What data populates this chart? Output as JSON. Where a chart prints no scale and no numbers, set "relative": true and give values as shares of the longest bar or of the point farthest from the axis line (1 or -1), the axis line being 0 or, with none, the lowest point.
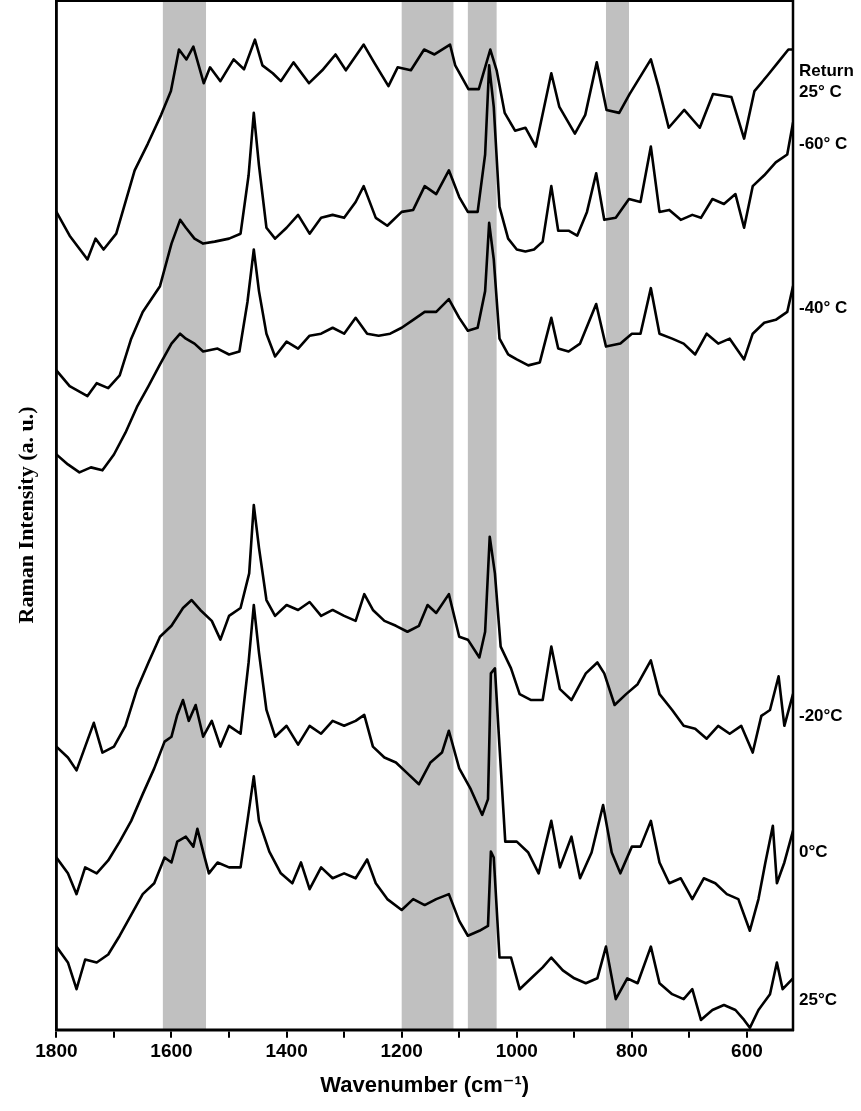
{
  "chart_data": {
    "type": "line",
    "relative": true,
    "xlabel": "Wavenumber (cm⁻¹)",
    "ylabel": "Raman Intensity (a. u.)",
    "xlim": [
      1800,
      520
    ],
    "xticks": [
      1800,
      {
        "value": 1700,
        "label": null
      },
      1600,
      {
        "value": 1500,
        "label": null
      },
      1400,
      {
        "value": 1300,
        "label": null
      },
      1200,
      {
        "value": 1100,
        "label": null
      },
      1000,
      {
        "value": 900,
        "label": null
      },
      800,
      {
        "value": 700,
        "label": null
      },
      600
    ],
    "legend": false,
    "marker": "none",
    "line_style": "solid",
    "bands": [
      {
        "axis": "x",
        "from": 1615,
        "to": 1540,
        "color": "#c0c0c0"
      },
      {
        "axis": "x",
        "from": 1200,
        "to": 1110,
        "color": "#c0c0c0"
      },
      {
        "axis": "x",
        "from": 1085,
        "to": 1035,
        "color": "#c0c0c0"
      },
      {
        "axis": "x",
        "from": 845,
        "to": 805,
        "color": "#c0c0c0"
      }
    ],
    "series": [
      {
        "name": "Return 25° C",
        "color": "#000000",
        "x": [
          1800,
          1777,
          1746,
          1732,
          1718,
          1696,
          1664,
          1641,
          1618,
          1601,
          1587,
          1574,
          1562,
          1544,
          1533,
          1515,
          1492,
          1474,
          1455,
          1442,
          1424,
          1410,
          1388,
          1361,
          1338,
          1315,
          1297,
          1266,
          1248,
          1223,
          1207,
          1184,
          1161,
          1143,
          1116,
          1107,
          1084,
          1066,
          1054,
          1046,
          1035,
          1021,
          1003,
          985,
          967,
          940,
          926,
          899,
          881,
          861,
          844,
          822,
          804,
          767,
          754,
          736,
          709,
          682,
          659,
          627,
          605,
          587,
          564,
          546,
          528,
          520
        ],
        "values": [
          0.826,
          0.802,
          0.778,
          0.799,
          0.788,
          0.804,
          0.868,
          0.895,
          0.924,
          0.948,
          0.99,
          0.98,
          0.993,
          0.956,
          0.972,
          0.958,
          0.98,
          0.97,
          1.0,
          0.974,
          0.966,
          0.958,
          0.977,
          0.956,
          0.969,
          0.985,
          0.969,
          0.995,
          0.977,
          0.953,
          0.972,
          0.969,
          0.99,
          0.985,
          0.995,
          0.974,
          0.95,
          0.95,
          0.974,
          0.99,
          0.969,
          0.926,
          0.908,
          0.911,
          0.892,
          0.966,
          0.932,
          0.905,
          0.924,
          0.977,
          0.929,
          0.926,
          0.945,
          0.98,
          0.953,
          0.911,
          0.929,
          0.911,
          0.945,
          0.942,
          0.9,
          0.948,
          0.964,
          0.977,
          0.99,
          0.99
        ]
      },
      {
        "name": "-60° C",
        "color": "#000000",
        "x": [
          1800,
          1777,
          1746,
          1730,
          1710,
          1690,
          1670,
          1650,
          1620,
          1600,
          1585,
          1575,
          1560,
          1545,
          1525,
          1500,
          1480,
          1466,
          1457,
          1448,
          1435,
          1420,
          1400,
          1380,
          1360,
          1340,
          1320,
          1300,
          1280,
          1266,
          1245,
          1225,
          1200,
          1180,
          1160,
          1140,
          1118,
          1100,
          1085,
          1068,
          1055,
          1048,
          1040,
          1030,
          1015,
          1000,
          985,
          970,
          955,
          940,
          928,
          910,
          895,
          878,
          862,
          848,
          828,
          805,
          785,
          767,
          752,
          735,
          715,
          695,
          680,
          660,
          640,
          620,
          605,
          590,
          570,
          550,
          530,
          520
        ],
        "values": [
          0.666,
          0.65,
          0.64,
          0.653,
          0.648,
          0.661,
          0.698,
          0.725,
          0.751,
          0.794,
          0.818,
          0.81,
          0.799,
          0.794,
          0.796,
          0.799,
          0.804,
          0.863,
          0.926,
          0.873,
          0.81,
          0.799,
          0.81,
          0.823,
          0.804,
          0.82,
          0.823,
          0.82,
          0.836,
          0.852,
          0.82,
          0.812,
          0.826,
          0.828,
          0.852,
          0.844,
          0.868,
          0.841,
          0.826,
          0.826,
          0.884,
          0.974,
          0.932,
          0.831,
          0.799,
          0.788,
          0.786,
          0.788,
          0.796,
          0.852,
          0.807,
          0.807,
          0.802,
          0.826,
          0.865,
          0.818,
          0.82,
          0.839,
          0.836,
          0.892,
          0.826,
          0.828,
          0.818,
          0.823,
          0.82,
          0.839,
          0.834,
          0.844,
          0.81,
          0.852,
          0.863,
          0.876,
          0.884,
          0.916
        ]
      },
      {
        "name": "-40° C",
        "color": "#000000",
        "x": [
          1800,
          1780,
          1760,
          1740,
          1720,
          1700,
          1680,
          1660,
          1640,
          1620,
          1600,
          1585,
          1575,
          1560,
          1545,
          1520,
          1500,
          1482,
          1468,
          1457,
          1448,
          1435,
          1420,
          1400,
          1380,
          1360,
          1340,
          1320,
          1300,
          1280,
          1260,
          1240,
          1220,
          1200,
          1180,
          1160,
          1140,
          1118,
          1100,
          1085,
          1068,
          1055,
          1048,
          1040,
          1030,
          1015,
          1000,
          980,
          960,
          940,
          928,
          910,
          890,
          862,
          845,
          820,
          800,
          785,
          767,
          752,
          730,
          710,
          690,
          670,
          650,
          630,
          605,
          590,
          570,
          550,
          530,
          520
        ],
        "values": [
          0.581,
          0.571,
          0.563,
          0.568,
          0.565,
          0.581,
          0.603,
          0.629,
          0.65,
          0.672,
          0.693,
          0.703,
          0.698,
          0.693,
          0.685,
          0.688,
          0.682,
          0.685,
          0.735,
          0.788,
          0.746,
          0.703,
          0.68,
          0.695,
          0.688,
          0.701,
          0.703,
          0.709,
          0.703,
          0.719,
          0.703,
          0.701,
          0.703,
          0.709,
          0.717,
          0.725,
          0.725,
          0.738,
          0.719,
          0.706,
          0.709,
          0.746,
          0.815,
          0.778,
          0.698,
          0.682,
          0.677,
          0.671,
          0.674,
          0.719,
          0.688,
          0.685,
          0.693,
          0.733,
          0.69,
          0.693,
          0.703,
          0.703,
          0.749,
          0.703,
          0.698,
          0.693,
          0.682,
          0.703,
          0.693,
          0.698,
          0.677,
          0.703,
          0.714,
          0.717,
          0.725,
          0.751
        ]
      },
      {
        "name": "-20°C",
        "color": "#000000",
        "x": [
          1800,
          1780,
          1765,
          1750,
          1735,
          1720,
          1700,
          1680,
          1660,
          1640,
          1620,
          1600,
          1580,
          1565,
          1550,
          1530,
          1515,
          1500,
          1480,
          1465,
          1457,
          1448,
          1435,
          1420,
          1400,
          1380,
          1360,
          1340,
          1320,
          1300,
          1280,
          1265,
          1250,
          1230,
          1210,
          1190,
          1170,
          1155,
          1140,
          1118,
          1100,
          1085,
          1065,
          1055,
          1047,
          1038,
          1028,
          1010,
          995,
          975,
          955,
          940,
          925,
          905,
          880,
          860,
          848,
          830,
          810,
          790,
          767,
          752,
          730,
          710,
          690,
          670,
          650,
          630,
          610,
          590,
          575,
          560,
          545,
          535,
          520
        ],
        "values": [
          0.286,
          0.275,
          0.262,
          0.286,
          0.31,
          0.28,
          0.286,
          0.307,
          0.344,
          0.371,
          0.397,
          0.408,
          0.426,
          0.434,
          0.424,
          0.413,
          0.394,
          0.418,
          0.426,
          0.461,
          0.53,
          0.487,
          0.434,
          0.418,
          0.429,
          0.424,
          0.432,
          0.418,
          0.424,
          0.418,
          0.413,
          0.44,
          0.424,
          0.413,
          0.408,
          0.402,
          0.408,
          0.429,
          0.421,
          0.44,
          0.397,
          0.394,
          0.376,
          0.402,
          0.498,
          0.461,
          0.387,
          0.365,
          0.339,
          0.333,
          0.333,
          0.387,
          0.344,
          0.333,
          0.36,
          0.371,
          0.36,
          0.328,
          0.339,
          0.349,
          0.373,
          0.339,
          0.323,
          0.307,
          0.304,
          0.294,
          0.307,
          0.299,
          0.307,
          0.28,
          0.317,
          0.323,
          0.357,
          0.307,
          0.339
        ]
      },
      {
        "name": "0°C",
        "color": "#000000",
        "x": [
          1800,
          1780,
          1765,
          1750,
          1730,
          1710,
          1690,
          1670,
          1650,
          1630,
          1612,
          1600,
          1590,
          1580,
          1570,
          1558,
          1545,
          1530,
          1515,
          1500,
          1480,
          1466,
          1457,
          1448,
          1435,
          1420,
          1400,
          1380,
          1360,
          1340,
          1320,
          1300,
          1280,
          1265,
          1250,
          1230,
          1210,
          1190,
          1170,
          1150,
          1130,
          1118,
          1100,
          1080,
          1060,
          1050,
          1045,
          1038,
          1030,
          1020,
          1000,
          980,
          962,
          940,
          925,
          905,
          890,
          870,
          850,
          835,
          820,
          800,
          785,
          767,
          752,
          735,
          715,
          695,
          675,
          655,
          635,
          615,
          595,
          580,
          568,
          555,
          548,
          535,
          520
        ],
        "values": [
          0.174,
          0.158,
          0.137,
          0.164,
          0.158,
          0.171,
          0.19,
          0.211,
          0.238,
          0.264,
          0.291,
          0.296,
          0.318,
          0.333,
          0.312,
          0.328,
          0.296,
          0.312,
          0.286,
          0.307,
          0.299,
          0.371,
          0.429,
          0.381,
          0.323,
          0.296,
          0.307,
          0.288,
          0.307,
          0.299,
          0.312,
          0.307,
          0.312,
          0.318,
          0.286,
          0.275,
          0.27,
          0.259,
          0.248,
          0.27,
          0.28,
          0.302,
          0.264,
          0.243,
          0.217,
          0.233,
          0.36,
          0.365,
          0.286,
          0.19,
          0.19,
          0.179,
          0.158,
          0.211,
          0.164,
          0.195,
          0.153,
          0.179,
          0.227,
          0.179,
          0.158,
          0.185,
          0.185,
          0.211,
          0.169,
          0.148,
          0.153,
          0.132,
          0.153,
          0.148,
          0.137,
          0.132,
          0.1,
          0.132,
          0.169,
          0.206,
          0.148,
          0.169,
          0.201
        ]
      },
      {
        "name": "25°C",
        "color": "#000000",
        "x": [
          1800,
          1780,
          1765,
          1750,
          1730,
          1710,
          1690,
          1670,
          1650,
          1630,
          1612,
          1600,
          1590,
          1575,
          1562,
          1555,
          1545,
          1535,
          1520,
          1500,
          1480,
          1468,
          1457,
          1448,
          1430,
          1410,
          1390,
          1375,
          1360,
          1340,
          1320,
          1300,
          1280,
          1260,
          1245,
          1225,
          1200,
          1180,
          1160,
          1140,
          1118,
          1100,
          1085,
          1065,
          1050,
          1045,
          1040,
          1030,
          1010,
          995,
          975,
          955,
          940,
          920,
          900,
          880,
          860,
          845,
          828,
          808,
          790,
          767,
          752,
          730,
          710,
          695,
          680,
          660,
          640,
          620,
          605,
          595,
          580,
          560,
          548,
          538,
          520
        ],
        "values": [
          0.084,
          0.068,
          0.041,
          0.071,
          0.068,
          0.076,
          0.095,
          0.116,
          0.137,
          0.148,
          0.174,
          0.169,
          0.19,
          0.195,
          0.185,
          0.203,
          0.18,
          0.158,
          0.169,
          0.164,
          0.164,
          0.211,
          0.256,
          0.211,
          0.18,
          0.158,
          0.148,
          0.169,
          0.142,
          0.164,
          0.153,
          0.158,
          0.153,
          0.172,
          0.148,
          0.132,
          0.121,
          0.132,
          0.126,
          0.132,
          0.137,
          0.11,
          0.095,
          0.1,
          0.105,
          0.18,
          0.174,
          0.073,
          0.073,
          0.041,
          0.052,
          0.063,
          0.073,
          0.06,
          0.052,
          0.047,
          0.052,
          0.084,
          0.031,
          0.052,
          0.047,
          0.084,
          0.047,
          0.036,
          0.031,
          0.041,
          0.01,
          0.02,
          0.025,
          0.02,
          0.01,
          0.002,
          0.02,
          0.036,
          0.068,
          0.041,
          0.052
        ]
      }
    ]
  }
}
